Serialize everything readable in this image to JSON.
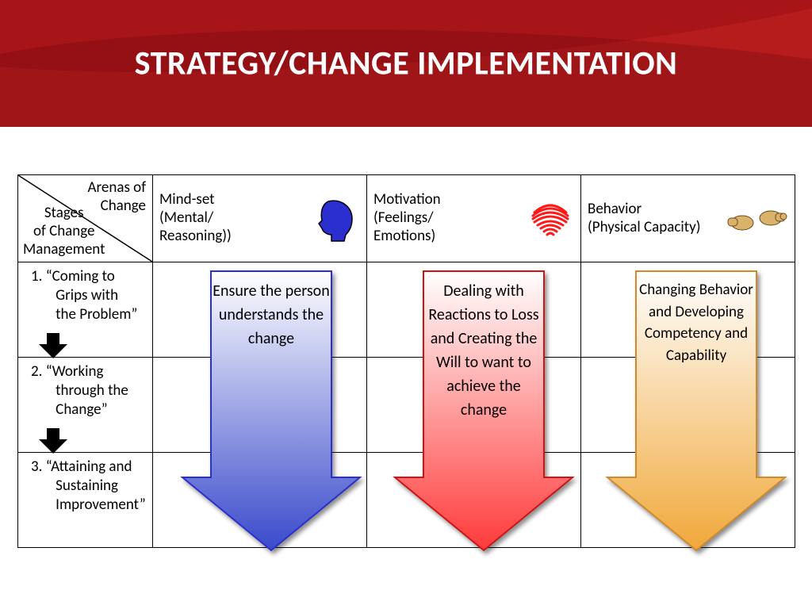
{
  "title": "STRATEGY/CHANGE IMPLEMENTATION",
  "header_bg": "#b71c1c",
  "header_text_color": "#ffffff",
  "header_fontsize": 42,
  "corner": {
    "top_right": "Arenas of\nChange",
    "bottom_left": "Stages\nof Change\nManagement"
  },
  "columns": [
    {
      "label": "Mind-set\n(Mental/\nReasoning))",
      "icon": "head",
      "icon_color": "#2b2fd0"
    },
    {
      "label": "Motivation\n(Feelings/\nEmotions)",
      "icon": "heart",
      "icon_color": "#ff1a1a"
    },
    {
      "label": "Behavior\n(Physical Capacity)",
      "icon": "hands",
      "icon_color": "#d9b36b"
    }
  ],
  "rows": [
    {
      "label": "1. “Coming to\n    Grips with\n    the Problem”"
    },
    {
      "label": "2. “Working\n    through the\n    Change”"
    },
    {
      "label": "3. “Attaining and\n    Sustaining\n    Improvement”"
    }
  ],
  "arrows": [
    {
      "text": "Ensure the person understands the change",
      "grad_from": "#ffffff",
      "grad_to": "#3a4acb",
      "stroke": "#2b2fd0"
    },
    {
      "text": "Dealing with Reactions to Loss and Creating the Will to want to achieve the change",
      "grad_from": "#ffffff",
      "grad_to": "#ff3a3a",
      "stroke": "#d01414"
    },
    {
      "text": "Changing Behavior and Developing Competency and Capability",
      "grad_from": "#ffffff",
      "grad_to": "#f0a83a",
      "stroke": "#d08a2b"
    }
  ],
  "table_border_color": "#000000",
  "row_header_fontsize": 18,
  "col_header_fontsize": 22,
  "arrow_label_fontsize": 20
}
